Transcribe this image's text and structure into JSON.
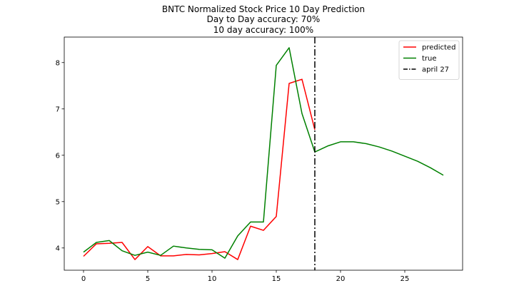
{
  "chart_data": {
    "type": "line",
    "title_lines": [
      "BNTC Normalized Stock Price 10 Day Prediction",
      "Day to Day accuracy: 70%",
      "10 day accuracy: 100%"
    ],
    "xlabel": "",
    "ylabel": "",
    "xlim": [
      -1.5,
      29.5
    ],
    "ylim": [
      3.52,
      8.55
    ],
    "xticks": [
      0,
      5,
      10,
      15,
      20,
      25
    ],
    "yticks": [
      4,
      5,
      6,
      7,
      8
    ],
    "grid": false,
    "legend_position": "upper right",
    "series": [
      {
        "name": "predicted",
        "color": "#ff0000",
        "x": [
          0,
          1,
          2,
          3,
          4,
          5,
          6,
          7,
          8,
          9,
          10,
          11,
          12,
          13,
          14,
          15,
          16,
          17,
          18
        ],
        "y": [
          3.82,
          4.09,
          4.1,
          4.12,
          3.75,
          4.03,
          3.83,
          3.83,
          3.86,
          3.85,
          3.88,
          3.92,
          3.75,
          4.47,
          4.38,
          4.68,
          7.55,
          7.64,
          6.55
        ]
      },
      {
        "name": "true",
        "color": "#008000",
        "x": [
          0,
          1,
          2,
          3,
          4,
          5,
          6,
          7,
          8,
          9,
          10,
          11,
          12,
          13,
          14,
          15,
          16,
          17,
          18,
          19,
          20,
          21,
          22,
          23,
          24,
          25,
          26,
          27,
          28
        ],
        "y": [
          3.91,
          4.12,
          4.16,
          3.94,
          3.84,
          3.91,
          3.84,
          4.04,
          4.0,
          3.97,
          3.96,
          3.78,
          4.26,
          4.56,
          4.56,
          7.94,
          8.32,
          6.9,
          6.07,
          6.2,
          6.29,
          6.29,
          6.25,
          6.18,
          6.09,
          5.98,
          5.87,
          5.73,
          5.57
        ]
      }
    ],
    "vlines": [
      {
        "name": "april 27",
        "x": 18,
        "color": "#000000",
        "style": "dashdot"
      }
    ]
  }
}
